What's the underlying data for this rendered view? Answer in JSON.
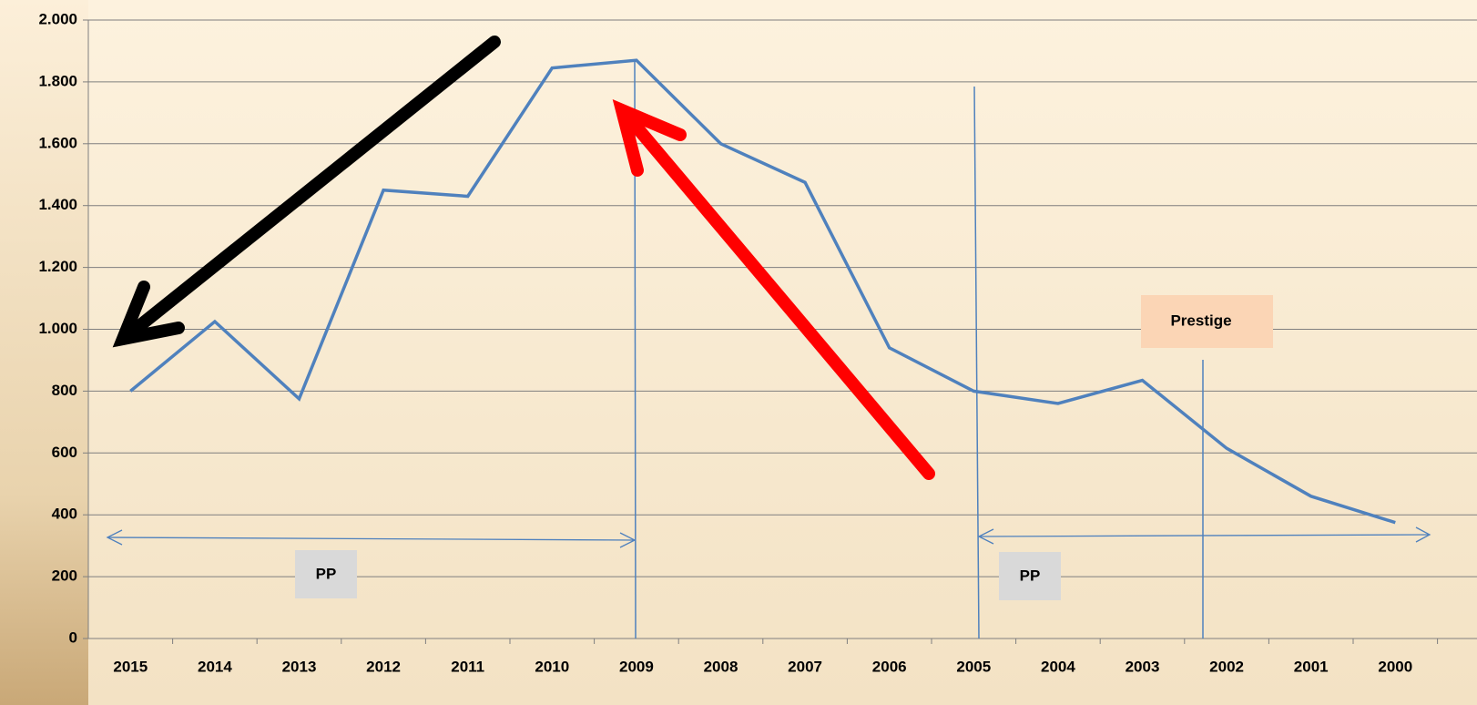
{
  "chart_data": {
    "type": "line",
    "categories": [
      "2015",
      "2014",
      "2013",
      "2012",
      "2011",
      "2010",
      "2009",
      "2008",
      "2007",
      "2006",
      "2005",
      "2004",
      "2003",
      "2002",
      "2001",
      "2000"
    ],
    "series": [
      {
        "color": "#4f81bd",
        "values": [
          800,
          1025,
          775,
          1450,
          1430,
          1845,
          1870,
          1600,
          1475,
          940,
          800,
          760,
          835,
          615,
          460,
          375
        ]
      }
    ],
    "ylim": [
      0,
      2000
    ],
    "yticks": [
      0,
      200,
      400,
      600,
      800,
      {
        "value": 1000,
        "label": "1.000"
      },
      {
        "value": 1200,
        "label": "1.200"
      },
      {
        "value": 1400,
        "label": "1.400"
      },
      {
        "value": 1600,
        "label": "1.600"
      },
      {
        "value": 1800,
        "label": "1.800"
      },
      {
        "value": 2000,
        "label": "2.000"
      }
    ],
    "grid": true,
    "annotations": [
      "PP",
      "PP",
      "Prestige"
    ]
  }
}
